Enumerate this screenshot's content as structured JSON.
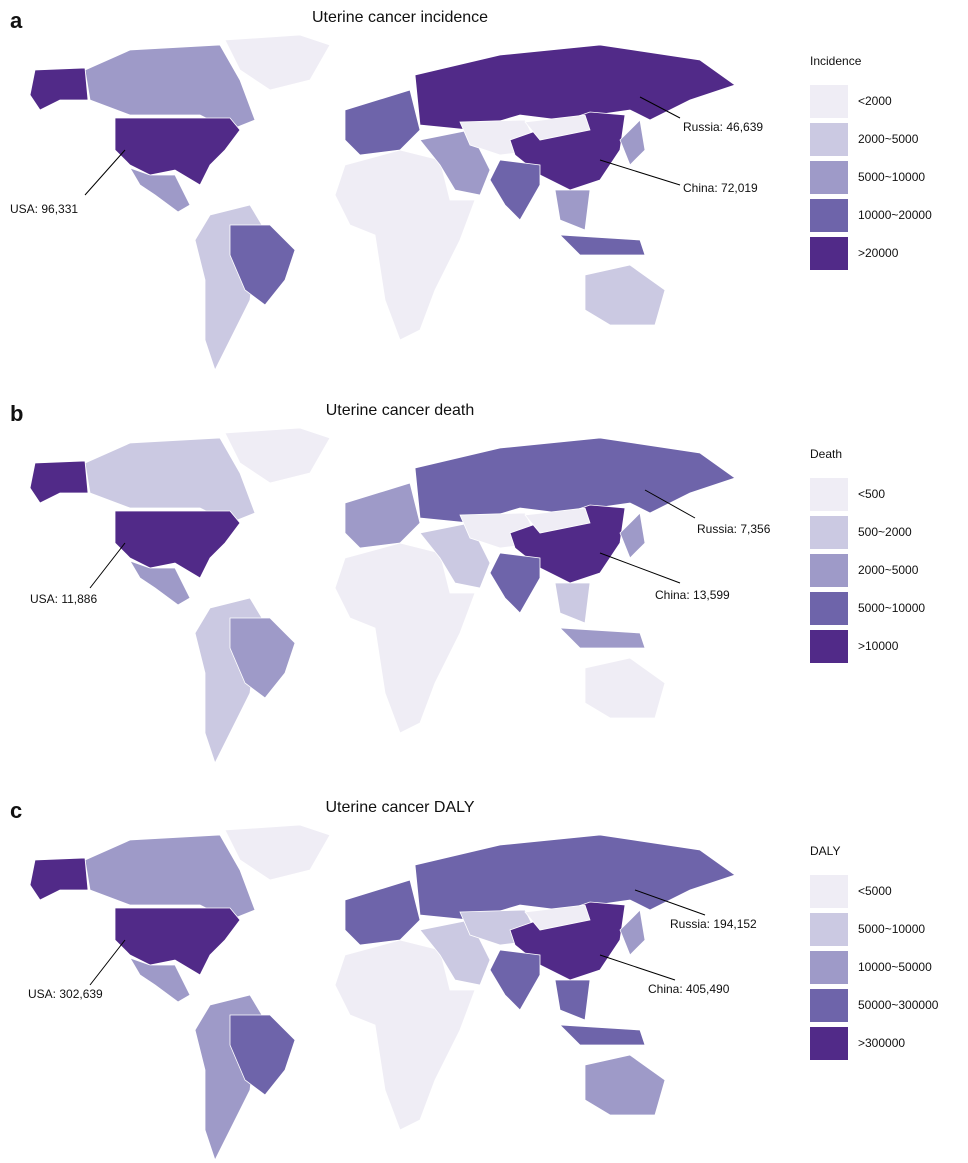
{
  "panels": [
    {
      "label": "a",
      "title": "Uterine cancer incidence",
      "legend": {
        "title": "Incidence",
        "items": [
          {
            "label": "<2000",
            "color": "#efedf5"
          },
          {
            "label": "2000~5000",
            "color": "#cbc9e2"
          },
          {
            "label": "5000~10000",
            "color": "#9e9ac8"
          },
          {
            "label": "10000~20000",
            "color": "#6e64aa"
          },
          {
            "label": ">20000",
            "color": "#512a88"
          }
        ]
      },
      "annotations": [
        "USA: 96,331",
        "Russia: 46,639",
        "China: 72,019"
      ]
    },
    {
      "label": "b",
      "title": "Uterine cancer death",
      "legend": {
        "title": "Death",
        "items": [
          {
            "label": "<500",
            "color": "#efedf5"
          },
          {
            "label": "500~2000",
            "color": "#cbc9e2"
          },
          {
            "label": "2000~5000",
            "color": "#9e9ac8"
          },
          {
            "label": "5000~10000",
            "color": "#6e64aa"
          },
          {
            "label": ">10000",
            "color": "#512a88"
          }
        ]
      },
      "annotations": [
        "USA: 11,886",
        "Russia: 7,356",
        "China: 13,599"
      ]
    },
    {
      "label": "c",
      "title": "Uterine cancer DALY",
      "legend": {
        "title": "DALY",
        "items": [
          {
            "label": "<5000",
            "color": "#efedf5"
          },
          {
            "label": "5000~10000",
            "color": "#cbc9e2"
          },
          {
            "label": "10000~50000",
            "color": "#9e9ac8"
          },
          {
            "label": "50000~300000",
            "color": "#6e64aa"
          },
          {
            "label": ">300000",
            "color": "#512a88"
          }
        ]
      },
      "annotations": [
        "USA: 302,639",
        "Russia: 194,152",
        "China: 405,490"
      ]
    }
  ]
}
